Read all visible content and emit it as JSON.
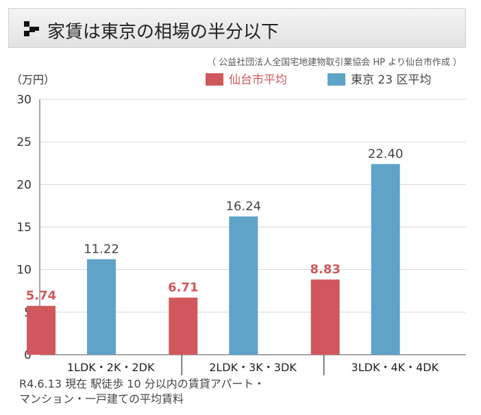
{
  "title": "家賃は東京の相場の半分以下",
  "source_note": "（ 公益社団法人全国宅地建物取引業協会 HP より仙台市作成 ）",
  "unit_label": "（万円）",
  "footnote": {
    "line1": "R4.6.13 現在 駅徒歩 10 分以内の賃貸アパート・",
    "line2": "マンション・一戸建ての平均賃料"
  },
  "colors": {
    "sendai": "#d0585c",
    "tokyo": "#5fa3c9",
    "sendai_label": "#d0585c",
    "tokyo_label": "#444444"
  },
  "icon": "checker-icon",
  "chart_data": {
    "type": "bar",
    "categories": [
      "1LDK・2K・2DK",
      "2LDK・3K・3DK",
      "3LDK・4K・4DK"
    ],
    "series": [
      {
        "name": "仙台市平均",
        "values": [
          5.74,
          6.71,
          8.83
        ],
        "labels": [
          "5.74",
          "6.71",
          "8.83"
        ]
      },
      {
        "name": "東京 23 区平均",
        "values": [
          11.22,
          16.24,
          22.4
        ],
        "labels": [
          "11.22",
          "16.24",
          "22.40"
        ]
      }
    ],
    "ylim": [
      0,
      30
    ],
    "yticks": [
      "0",
      "5",
      "10",
      "15",
      "20",
      "25",
      "30"
    ],
    "grid": true,
    "legend_position": "top-right"
  }
}
